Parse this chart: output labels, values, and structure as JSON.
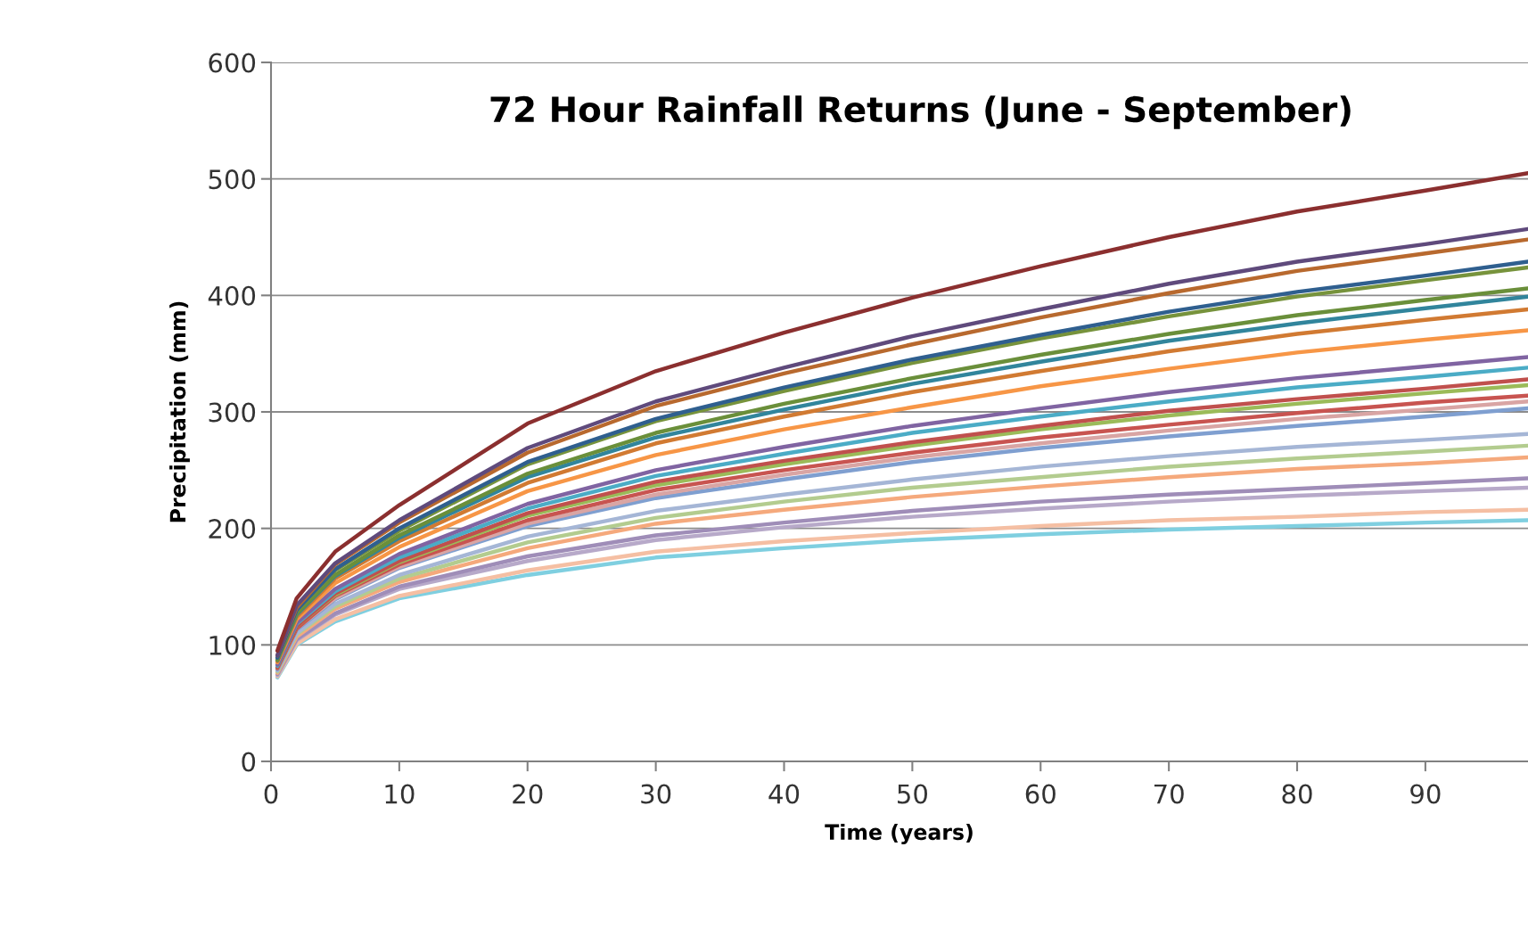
{
  "chart_data": {
    "type": "line",
    "title": "72 Hour Rainfall Returns (June - September)",
    "xlabel": "Time (years)",
    "ylabel": "Precipitation (mm)",
    "x": [
      0.5,
      2,
      5,
      10,
      20,
      30,
      40,
      50,
      60,
      70,
      80,
      90,
      98
    ],
    "xlim": [
      0,
      98
    ],
    "xticks": [
      0,
      10,
      20,
      30,
      40,
      50,
      60,
      70,
      80,
      90
    ],
    "ylim": [
      0,
      600
    ],
    "yticks": [
      0,
      100,
      200,
      300,
      400,
      500,
      600
    ],
    "grid": "y",
    "legend": false,
    "marker": "none",
    "line_style": "solid",
    "series": [
      {
        "color": "#7fcfe0",
        "values": [
          72,
          100,
          120,
          140,
          160,
          175,
          183,
          190,
          195,
          199,
          202,
          205,
          207
        ]
      },
      {
        "color": "#f5bfa3",
        "values": [
          73,
          101,
          122,
          142,
          164,
          180,
          189,
          196,
          202,
          207,
          210,
          214,
          216
        ]
      },
      {
        "color": "#b7a9c9",
        "values": [
          74,
          104,
          126,
          148,
          172,
          190,
          201,
          210,
          217,
          223,
          228,
          232,
          235
        ]
      },
      {
        "color": "#9f8db8",
        "values": [
          75,
          105,
          127,
          150,
          176,
          194,
          205,
          215,
          223,
          229,
          234,
          239,
          243
        ]
      },
      {
        "color": "#f5a97c",
        "values": [
          76,
          107,
          131,
          154,
          183,
          204,
          216,
          227,
          236,
          244,
          251,
          256,
          261
        ]
      },
      {
        "color": "#b3cc8f",
        "values": [
          77,
          109,
          133,
          157,
          188,
          209,
          223,
          235,
          244,
          253,
          260,
          266,
          271
        ]
      },
      {
        "color": "#a5b6d6",
        "values": [
          78,
          110,
          135,
          160,
          193,
          215,
          229,
          242,
          253,
          262,
          270,
          276,
          281
        ]
      },
      {
        "color": "#7f9fd0",
        "values": [
          79,
          113,
          139,
          166,
          202,
          226,
          242,
          257,
          269,
          279,
          288,
          296,
          303
        ]
      },
      {
        "color": "#d9a5a4",
        "values": [
          80,
          114,
          140,
          167,
          204,
          229,
          246,
          261,
          273,
          284,
          294,
          302,
          309
        ]
      },
      {
        "color": "#c85450",
        "values": [
          80,
          114,
          142,
          169,
          207,
          233,
          250,
          265,
          278,
          289,
          299,
          308,
          314
        ]
      },
      {
        "color": "#9bbb59",
        "values": [
          81,
          116,
          143,
          171,
          211,
          237,
          255,
          271,
          285,
          297,
          307,
          316,
          323
        ]
      },
      {
        "color": "#c0504d",
        "values": [
          81,
          116,
          144,
          172,
          213,
          240,
          258,
          274,
          288,
          301,
          311,
          320,
          328
        ]
      },
      {
        "color": "#4bacc6",
        "values": [
          82,
          118,
          146,
          175,
          217,
          245,
          264,
          282,
          296,
          309,
          321,
          330,
          338
        ]
      },
      {
        "color": "#8064a2",
        "values": [
          83,
          119,
          148,
          178,
          221,
          250,
          270,
          288,
          303,
          317,
          329,
          339,
          347
        ]
      },
      {
        "color": "#f79646",
        "values": [
          85,
          122,
          153,
          184,
          232,
          263,
          285,
          304,
          322,
          337,
          351,
          362,
          370
        ]
      },
      {
        "color": "#d17a32",
        "values": [
          86,
          124,
          157,
          189,
          239,
          273,
          296,
          317,
          335,
          352,
          367,
          379,
          388
        ]
      },
      {
        "color": "#31859c",
        "values": [
          87,
          126,
          159,
          192,
          244,
          278,
          302,
          324,
          343,
          361,
          376,
          389,
          399
        ]
      },
      {
        "color": "#6a8f3a",
        "values": [
          87,
          127,
          160,
          194,
          247,
          282,
          307,
          329,
          349,
          367,
          383,
          396,
          406
        ]
      },
      {
        "color": "#77933c",
        "values": [
          89,
          129,
          164,
          198,
          255,
          292,
          318,
          342,
          363,
          382,
          399,
          413,
          424
        ]
      },
      {
        "color": "#2f5f8f",
        "values": [
          89,
          130,
          165,
          200,
          257,
          294,
          321,
          345,
          366,
          386,
          403,
          417,
          429
        ]
      },
      {
        "color": "#b8692e",
        "values": [
          91,
          132,
          169,
          205,
          265,
          305,
          333,
          358,
          381,
          402,
          421,
          436,
          448
        ]
      },
      {
        "color": "#5f4a7c",
        "values": [
          91,
          134,
          170,
          207,
          269,
          309,
          338,
          365,
          388,
          410,
          429,
          444,
          457
        ]
      },
      {
        "color": "#8b2f2f",
        "values": [
          95,
          140,
          180,
          220,
          290,
          335,
          368,
          398,
          425,
          450,
          472,
          490,
          505
        ]
      }
    ]
  }
}
